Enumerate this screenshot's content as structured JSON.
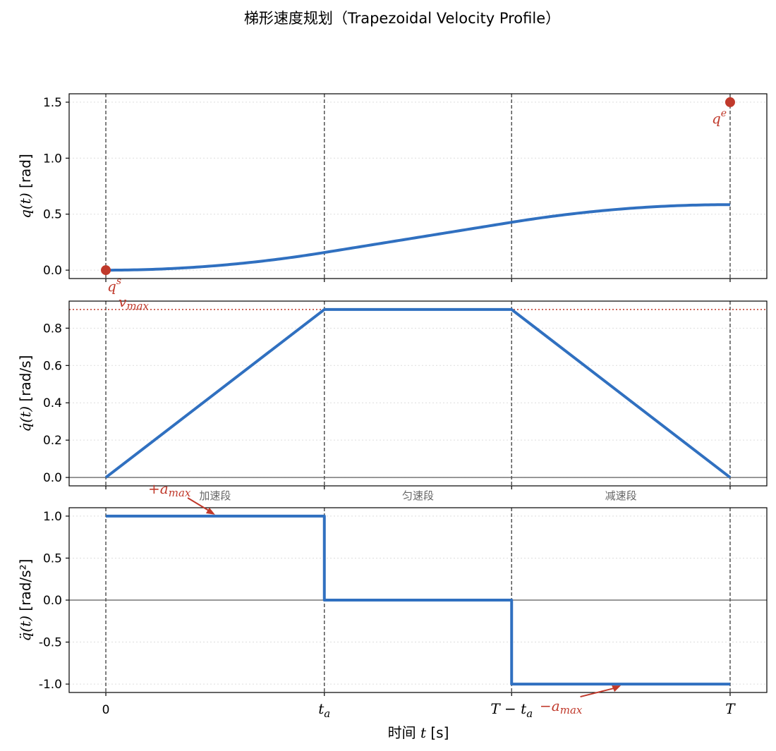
{
  "chart_data": {
    "type": "line",
    "title": "梯形速度规划（Trapezoidal Velocity Profile）",
    "xlabel_main": "时间",
    "xlabel_var": "t",
    "xlabel_unit": "[s]",
    "xticks": [
      {
        "label": "0",
        "x": 0
      },
      {
        "label": "t",
        "sub": "a",
        "x": 0.35
      },
      {
        "label": "T − t",
        "sub": "a",
        "x": 0.65
      },
      {
        "label": "T",
        "x": 1
      }
    ],
    "xlim": [
      -0.0588,
      1.0588
    ],
    "colors": {
      "line": "#3070c0",
      "accent": "#c0392b",
      "guide": "#555555",
      "zero": "#777777"
    },
    "panels": [
      {
        "id": "position",
        "ylabel_var": "q(t)",
        "ylabel_unit": "[rad]",
        "ylim": [
          -0.075,
          1.575
        ],
        "yticks": [
          0.0,
          0.5,
          1.0,
          1.5
        ],
        "ytick_labels": [
          "0.0",
          "0.5",
          "1.0",
          "1.5"
        ],
        "curve": "position",
        "start_label": "q",
        "start_sup": "s",
        "end_label": "q",
        "end_sup": "e"
      },
      {
        "id": "velocity",
        "ylabel_var": "q̇(t)",
        "ylabel_unit": "[rad/s]",
        "ylim": [
          -0.045,
          0.945
        ],
        "yticks": [
          0.0,
          0.2,
          0.4,
          0.6,
          0.8
        ],
        "ytick_labels": [
          "0.0",
          "0.2",
          "0.4",
          "0.6",
          "0.8"
        ],
        "x": [
          0,
          0.35,
          0.65,
          1
        ],
        "y": [
          0,
          0.9,
          0.9,
          0
        ],
        "vmax": 0.9,
        "vmax_label": "v",
        "vmax_sub": "max"
      },
      {
        "id": "acceleration",
        "ylabel_var": "q̈(t)",
        "ylabel_unit": "[rad/s²]",
        "ylim": [
          -1.1,
          1.1
        ],
        "yticks": [
          -1.0,
          -0.5,
          0.0,
          0.5,
          1.0
        ],
        "ytick_labels": [
          "-1.0",
          "-0.5",
          "0.0",
          "0.5",
          "1.0"
        ],
        "x": [
          0,
          0.35,
          0.35,
          0.65,
          0.65,
          1
        ],
        "y": [
          1,
          1,
          0,
          0,
          -1,
          -1
        ],
        "pos_label": "+a",
        "pos_sub": "max",
        "neg_label": "−a",
        "neg_sub": "max",
        "segments": [
          "加速段",
          "匀速段",
          "减速段"
        ]
      }
    ]
  }
}
